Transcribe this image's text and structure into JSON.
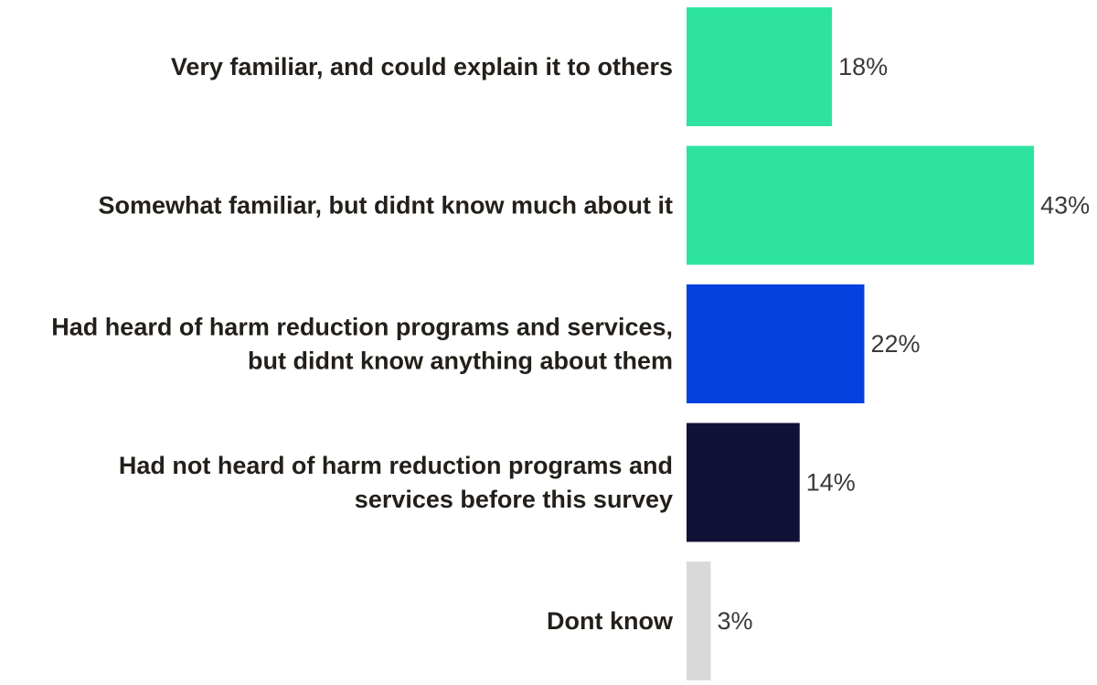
{
  "chart_data": {
    "type": "bar",
    "orientation": "horizontal",
    "unit": "%",
    "categories": [
      [
        "Very familiar, and could explain it to others"
      ],
      [
        "Somewhat familiar, but didnt know much about it"
      ],
      [
        "Had heard of harm reduction programs and services,",
        "but didnt know anything about them"
      ],
      [
        "Had not heard of harm reduction programs and",
        "services before this survey"
      ],
      [
        "Dont know"
      ]
    ],
    "values": [
      18,
      43,
      22,
      14,
      3
    ],
    "value_labels": [
      "18%",
      "43%",
      "22%",
      "14%",
      "3%"
    ],
    "colors": [
      "#2ee3a0",
      "#2ee3a0",
      "#0442e0",
      "#121138",
      "#d9d9d9"
    ],
    "xlim": [
      0,
      43
    ],
    "title": "",
    "xlabel": "",
    "ylabel": "",
    "grid": false,
    "legend": "none"
  }
}
